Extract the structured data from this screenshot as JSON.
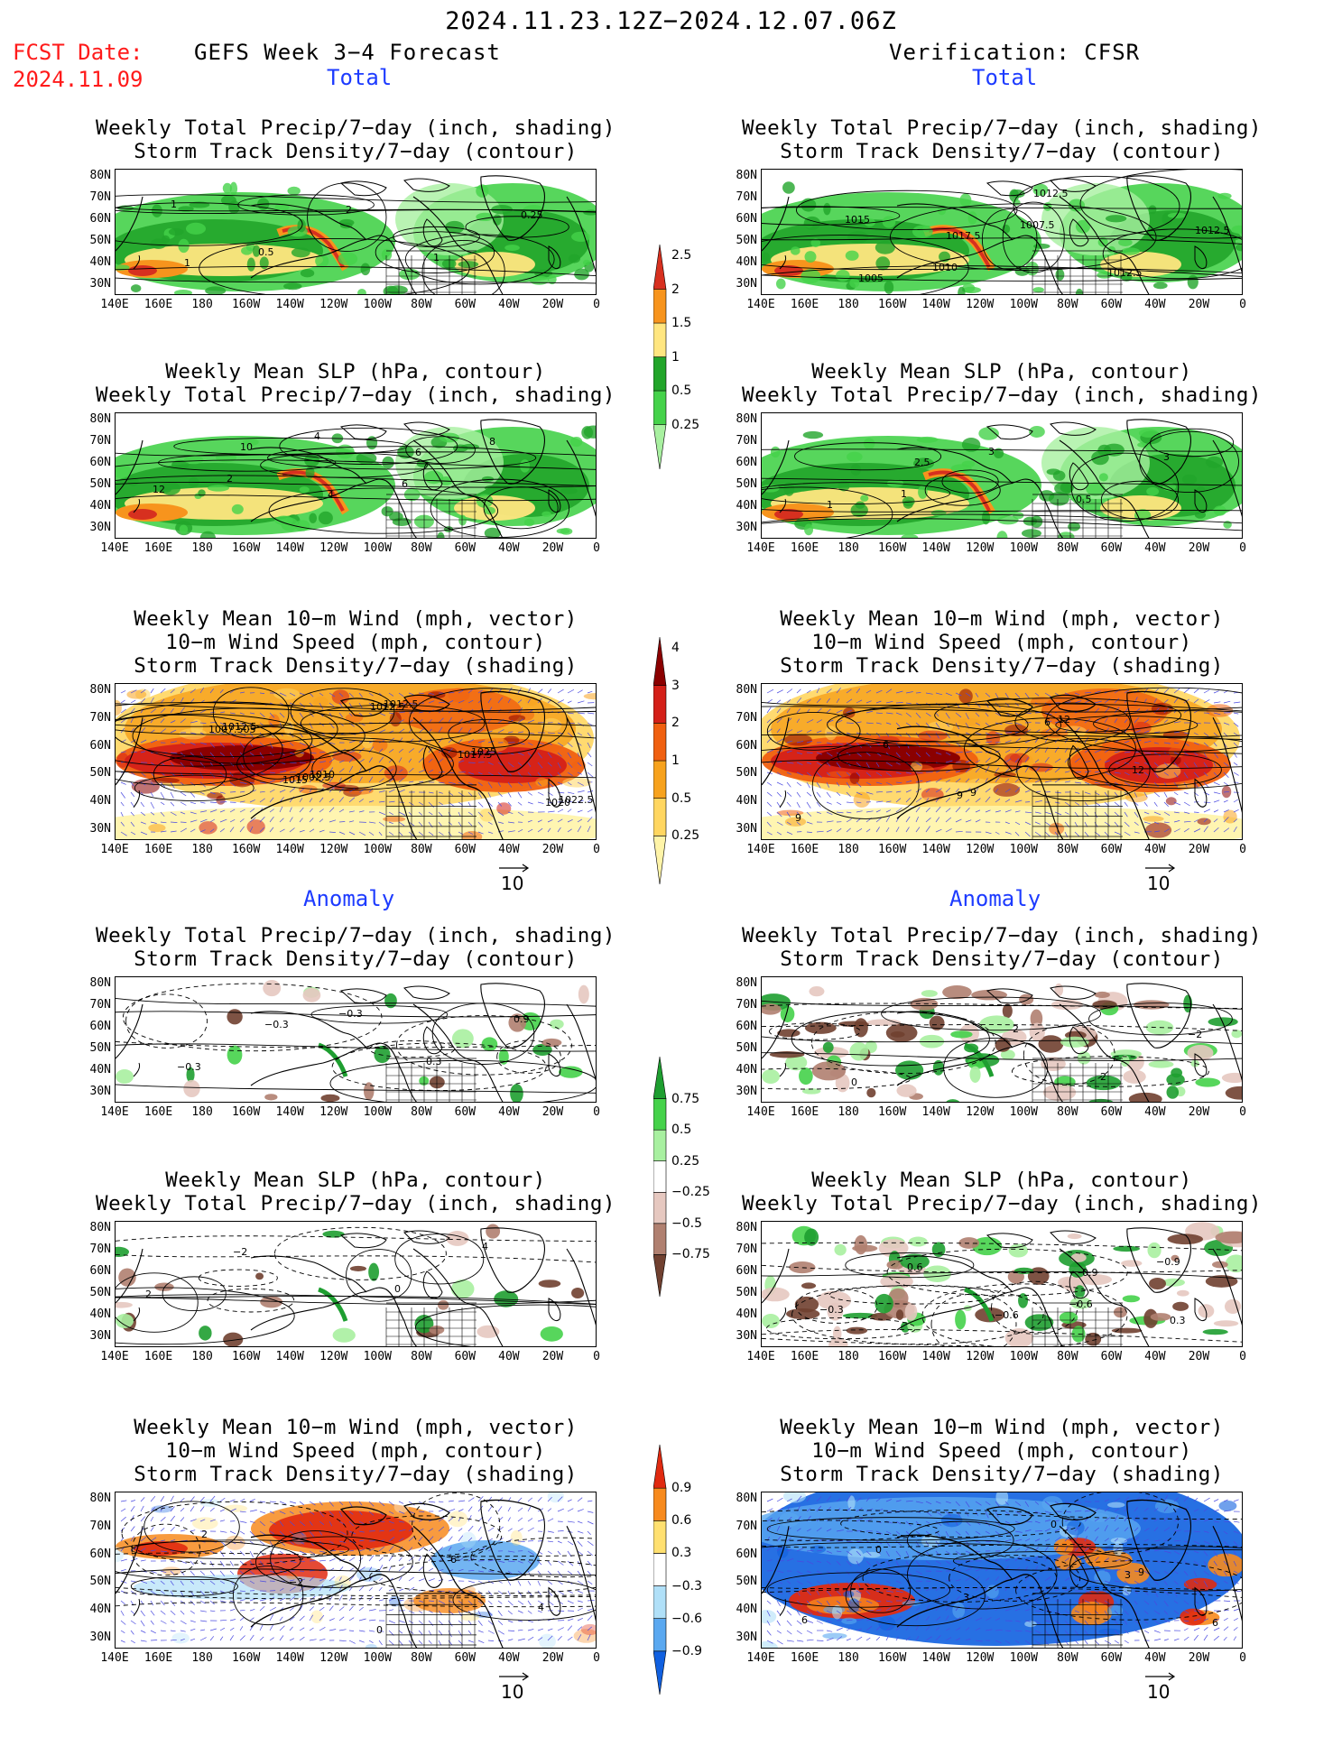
{
  "header": {
    "date_range": "2024.11.23.12Z−2024.12.07.06Z",
    "fcst_label": "FCST Date:",
    "fcst_date": "2024.11.09",
    "left_title": "GEFS Week 3−4 Forecast",
    "right_title": "Verification: CFSR",
    "total_label": "Total",
    "anomaly_label": "Anomaly"
  },
  "titles": {
    "precip_storm": [
      "Weekly Total Precip/7−day (inch, shading)",
      "Storm Track Density/7−day (contour)"
    ],
    "slp_precip": [
      "Weekly Mean SLP (hPa, contour)",
      "Weekly Total Precip/7−day (inch, shading)"
    ],
    "wind_storm": [
      "Weekly Mean 10−m Wind (mph, vector)",
      "10−m Wind Speed (mph, contour)",
      "Storm Track Density/7−day (shading)"
    ]
  },
  "axes": {
    "lat_ticks": [
      "80N",
      "70N",
      "60N",
      "50N",
      "40N",
      "30N"
    ],
    "lon_ticks": [
      "140E",
      "160E",
      "180",
      "160W",
      "140W",
      "120W",
      "100W",
      "80W",
      "60W",
      "40W",
      "20W",
      "0"
    ]
  },
  "vector_ref": "10",
  "colorbars": {
    "precip_total": {
      "labels": [
        "2.5",
        "2",
        "1.5",
        "1",
        "0.5",
        "0.25"
      ],
      "colors": [
        "#d7301f",
        "#f7941d",
        "#ffe680",
        "#22a52a",
        "#45d24a",
        "#a8f0a0"
      ]
    },
    "storm_total": {
      "labels": [
        "4",
        "3",
        "2",
        "1",
        "0.5",
        "0.25"
      ],
      "colors": [
        "#8b0000",
        "#d42018",
        "#f06010",
        "#f7a21d",
        "#ffd660",
        "#fff4a8"
      ]
    },
    "precip_anom": {
      "labels": [
        "0.75",
        "0.5",
        "0.25",
        "−0.25",
        "−0.5",
        "−0.75"
      ],
      "colors": [
        "#1e9e30",
        "#45d24a",
        "#a8f0a0",
        "#ffffff",
        "#e6c8c0",
        "#b08070",
        "#704030"
      ]
    },
    "storm_anom": {
      "labels": [
        "0.9",
        "0.6",
        "0.3",
        "−0.3",
        "−0.6",
        "−0.9"
      ],
      "colors": [
        "#e02a10",
        "#f78a1d",
        "#ffe070",
        "#ffffff",
        "#b0e0f8",
        "#5aa8f0",
        "#1060e0"
      ]
    }
  },
  "contour_labels": {
    "p1": [
      "1",
      "0.5",
      "2",
      "1",
      "0.25",
      "1"
    ],
    "p2": [
      "1015",
      "1010",
      "1007.5",
      "1012.5",
      "1012.5",
      "1005",
      "1017.5",
      "1012.5"
    ],
    "p3": [
      "2",
      "4",
      "6",
      "8",
      "12",
      "10",
      "4",
      "6"
    ],
    "p4": [
      "1",
      "3",
      "0.5",
      "3",
      "1",
      "2.5"
    ],
    "p5": [
      "1015",
      "1012.5",
      "1017.5",
      "1020",
      "1007.505",
      "1002.5",
      "1012.5",
      "1025",
      "1022.5",
      "1012.5",
      "1010"
    ],
    "p6": [
      "9",
      "6",
      "12",
      "9",
      "6",
      "9",
      "12"
    ],
    "p7": [
      "−0.3",
      "0.3",
      "0.9",
      "−0.3",
      "−0.3"
    ],
    "p8": [
      "2",
      "2",
      "−2",
      "0"
    ],
    "p9": [
      "0",
      "4",
      "2",
      "−2"
    ],
    "p10": [
      "−0.6",
      "−0.9",
      "−0.3",
      "0.6",
      "−0.6",
      "0.9",
      "0.3"
    ],
    "p11": [
      "6",
      "4",
      "2",
      "−2",
      "0"
    ],
    "p12": [
      "3",
      "6",
      "0",
      "3",
      "0",
      "9",
      "6"
    ]
  }
}
